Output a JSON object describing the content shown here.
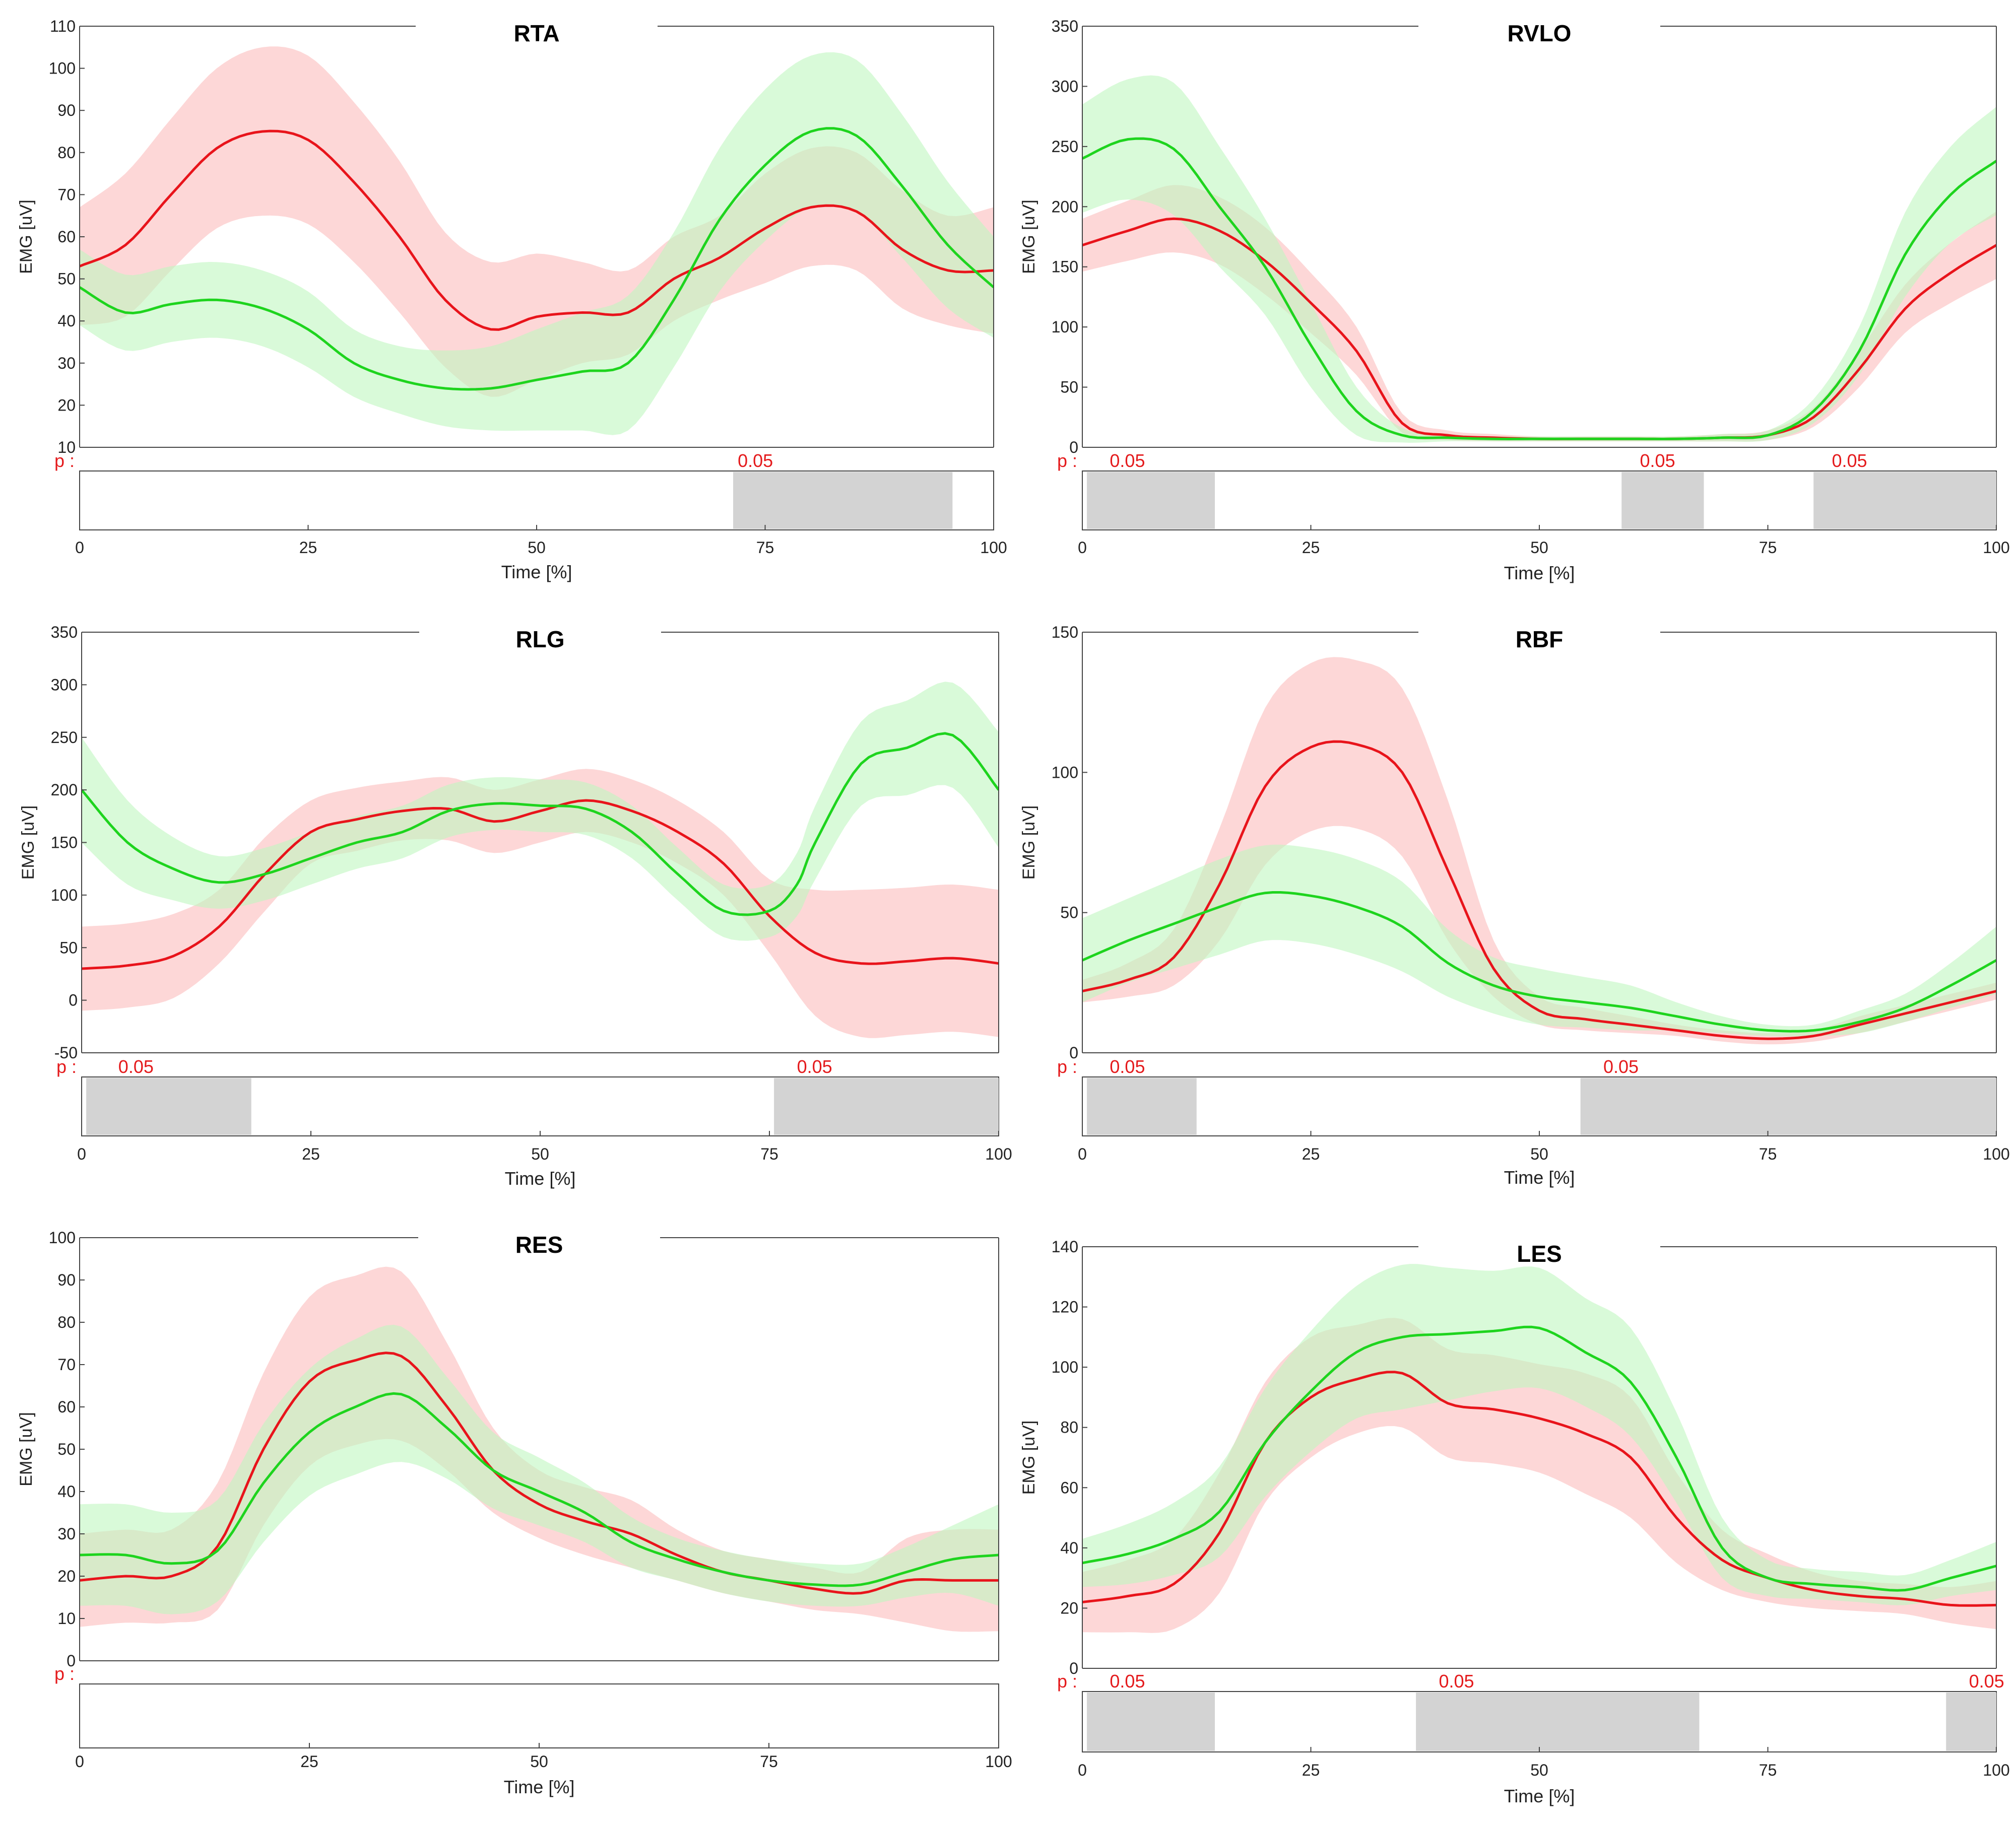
{
  "chart_data": [
    {
      "type": "line",
      "title": "RTA",
      "xlabel": "Time [%]",
      "ylabel": "EMG [uV]",
      "xlim": [
        0,
        100
      ],
      "ylim": [
        10,
        110
      ],
      "yticks": [
        10,
        20,
        30,
        40,
        50,
        60,
        70,
        80,
        90,
        100,
        110
      ],
      "xticks": [
        0,
        25,
        50,
        75,
        100
      ],
      "p_label": "p :",
      "colors": {
        "red": "#e8141b",
        "green": "#1ed41e",
        "red_band": "#fbbcbc",
        "green_band": "#bff7bf",
        "sig": "#d3d3d3"
      },
      "series": [
        {
          "name": "red",
          "color": "#e8141b",
          "x": [
            0,
            5,
            10,
            15,
            20,
            25,
            30,
            35,
            40,
            45,
            50,
            55,
            60,
            65,
            70,
            75,
            80,
            85,
            90,
            95,
            100
          ],
          "mean": [
            53,
            58,
            70,
            81,
            85,
            83,
            73,
            60,
            45,
            38,
            41,
            42,
            42,
            50,
            55,
            62,
            67,
            66,
            57,
            52,
            52
          ],
          "sd": [
            14,
            17,
            18,
            19,
            20,
            20,
            19,
            18,
            16,
            16,
            15,
            12,
            10,
            10,
            10,
            13,
            14,
            14,
            14,
            13,
            15
          ]
        },
        {
          "name": "green",
          "color": "#1ed41e",
          "x": [
            0,
            5,
            10,
            15,
            20,
            25,
            30,
            35,
            40,
            45,
            50,
            55,
            60,
            65,
            70,
            75,
            80,
            85,
            90,
            95,
            100
          ],
          "mean": [
            48,
            42,
            44,
            45,
            43,
            38,
            30,
            26,
            24,
            24,
            26,
            28,
            30,
            45,
            64,
            77,
            85,
            84,
            72,
            58,
            48
          ],
          "sd": [
            9,
            9,
            9,
            9,
            9,
            9,
            8,
            8,
            9,
            10,
            12,
            14,
            16,
            16,
            17,
            18,
            18,
            18,
            17,
            15,
            12
          ]
        }
      ],
      "significance": {
        "threshold_label": "0.05",
        "threshold_at": 72,
        "clusters": [
          {
            "start": 71.5,
            "end": 95.5
          }
        ]
      }
    },
    {
      "type": "line",
      "title": "RVLO",
      "xlabel": "Time [%]",
      "ylabel": "EMG [uV]",
      "xlim": [
        0,
        100
      ],
      "ylim": [
        0,
        350
      ],
      "yticks": [
        0,
        50,
        100,
        150,
        200,
        250,
        300,
        350
      ],
      "xticks": [
        0,
        25,
        50,
        75,
        100
      ],
      "p_label": "p :",
      "colors": {
        "red": "#e8141b",
        "green": "#1ed41e",
        "red_band": "#fbbcbc",
        "green_band": "#bff7bf",
        "sig": "#d3d3d3"
      },
      "series": [
        {
          "name": "red",
          "color": "#e8141b",
          "x": [
            0,
            5,
            10,
            15,
            20,
            25,
            30,
            35,
            40,
            45,
            50,
            55,
            60,
            65,
            70,
            75,
            80,
            85,
            90,
            95,
            100
          ],
          "mean": [
            168,
            180,
            190,
            180,
            155,
            120,
            80,
            20,
            10,
            8,
            7,
            7,
            7,
            7,
            8,
            10,
            25,
            65,
            115,
            145,
            168
          ],
          "sd": [
            22,
            25,
            28,
            28,
            28,
            25,
            20,
            8,
            4,
            3,
            2,
            2,
            2,
            2,
            3,
            4,
            8,
            15,
            20,
            25,
            28
          ]
        },
        {
          "name": "green",
          "color": "#1ed41e",
          "x": [
            0,
            5,
            10,
            15,
            20,
            25,
            30,
            35,
            40,
            45,
            50,
            55,
            60,
            65,
            70,
            75,
            80,
            85,
            90,
            95,
            100
          ],
          "mean": [
            240,
            256,
            248,
            200,
            150,
            85,
            30,
            10,
            8,
            7,
            7,
            7,
            7,
            7,
            8,
            10,
            30,
            80,
            160,
            210,
            238
          ],
          "sd": [
            45,
            50,
            55,
            50,
            40,
            35,
            20,
            6,
            3,
            2,
            2,
            2,
            2,
            2,
            3,
            4,
            10,
            20,
            35,
            40,
            45
          ]
        }
      ],
      "significance": {
        "threshold_label": "0.05",
        "clusters": [
          {
            "start": 0.5,
            "end": 14.5
          },
          {
            "start": 59,
            "end": 68
          },
          {
            "start": 80,
            "end": 100
          }
        ],
        "threshold_positions": [
          3,
          61,
          82
        ]
      }
    },
    {
      "type": "line",
      "title": "RLG",
      "xlabel": "Time [%]",
      "ylabel": "EMG [uV]",
      "xlim": [
        0,
        100
      ],
      "ylim": [
        -50,
        350
      ],
      "yticks": [
        -50,
        0,
        50,
        100,
        150,
        200,
        250,
        300,
        350
      ],
      "xticks": [
        0,
        25,
        50,
        75,
        100
      ],
      "p_label": "p :",
      "colors": {
        "red": "#e8141b",
        "green": "#1ed41e",
        "red_band": "#fbbcbc",
        "green_band": "#bff7bf",
        "sig": "#d3d3d3"
      },
      "series": [
        {
          "name": "red",
          "color": "#e8141b",
          "x": [
            0,
            5,
            10,
            15,
            20,
            25,
            30,
            35,
            40,
            45,
            50,
            55,
            60,
            65,
            70,
            75,
            80,
            85,
            90,
            95,
            100
          ],
          "mean": [
            30,
            33,
            42,
            70,
            120,
            160,
            172,
            180,
            182,
            170,
            180,
            190,
            180,
            160,
            130,
            80,
            45,
            35,
            37,
            40,
            35
          ],
          "sd": [
            40,
            40,
            40,
            35,
            35,
            30,
            30,
            28,
            30,
            30,
            30,
            30,
            30,
            30,
            30,
            35,
            60,
            70,
            70,
            70,
            70
          ]
        },
        {
          "name": "green",
          "color": "#1ed41e",
          "x": [
            0,
            5,
            10,
            15,
            20,
            25,
            30,
            35,
            40,
            45,
            50,
            55,
            60,
            65,
            70,
            75,
            78,
            80,
            85,
            90,
            95,
            100
          ],
          "mean": [
            200,
            150,
            125,
            112,
            120,
            135,
            150,
            160,
            180,
            187,
            185,
            182,
            160,
            120,
            85,
            85,
            110,
            150,
            225,
            240,
            252,
            200
          ],
          "sd": [
            50,
            40,
            30,
            25,
            25,
            25,
            25,
            25,
            25,
            25,
            25,
            25,
            25,
            25,
            25,
            25,
            30,
            35,
            40,
            45,
            50,
            55
          ]
        }
      ],
      "significance": {
        "threshold_label": "0.05",
        "clusters": [
          {
            "start": 0.5,
            "end": 18.5
          },
          {
            "start": 75.5,
            "end": 100
          }
        ],
        "threshold_positions": [
          4,
          78
        ]
      }
    },
    {
      "type": "line",
      "title": "RBF",
      "xlabel": "Time [%]",
      "ylabel": "EMG [uV]",
      "xlim": [
        0,
        100
      ],
      "ylim": [
        0,
        150
      ],
      "yticks": [
        0,
        50,
        100,
        150
      ],
      "xticks": [
        0,
        25,
        50,
        75,
        100
      ],
      "p_label": "p :",
      "colors": {
        "red": "#e8141b",
        "green": "#1ed41e",
        "red_band": "#fbbcbc",
        "green_band": "#bff7bf",
        "sig": "#d3d3d3"
      },
      "series": [
        {
          "name": "red",
          "color": "#e8141b",
          "x": [
            0,
            5,
            10,
            15,
            20,
            25,
            30,
            35,
            40,
            45,
            50,
            55,
            60,
            65,
            70,
            75,
            80,
            85,
            90,
            95,
            100
          ],
          "mean": [
            22,
            26,
            34,
            60,
            95,
            109,
            110,
            100,
            65,
            30,
            15,
            12,
            10,
            8,
            6,
            5,
            6,
            10,
            14,
            18,
            22
          ],
          "sd": [
            4,
            6,
            10,
            20,
            28,
            30,
            30,
            30,
            25,
            10,
            5,
            4,
            3,
            2,
            2,
            2,
            2,
            3,
            3,
            3,
            3
          ]
        },
        {
          "name": "green",
          "color": "#1ed41e",
          "x": [
            0,
            5,
            10,
            15,
            20,
            25,
            30,
            35,
            40,
            45,
            50,
            55,
            60,
            65,
            70,
            75,
            80,
            85,
            90,
            95,
            100
          ],
          "mean": [
            33,
            40,
            46,
            52,
            57,
            56,
            52,
            45,
            32,
            24,
            20,
            18,
            16,
            13,
            10,
            8,
            8,
            11,
            16,
            24,
            33
          ],
          "sd": [
            15,
            15,
            16,
            17,
            17,
            17,
            17,
            16,
            12,
            10,
            10,
            9,
            8,
            5,
            3,
            2,
            2,
            4,
            5,
            8,
            12
          ]
        }
      ],
      "significance": {
        "threshold_label": "0.05",
        "clusters": [
          {
            "start": 0.5,
            "end": 12.5
          },
          {
            "start": 54.5,
            "end": 100
          }
        ],
        "threshold_positions": [
          3,
          57
        ]
      }
    },
    {
      "type": "line",
      "title": "RES",
      "xlabel": "Time [%]",
      "ylabel": "EMG [uV]",
      "xlim": [
        0,
        100
      ],
      "ylim": [
        0,
        100
      ],
      "yticks": [
        0,
        10,
        20,
        30,
        40,
        50,
        60,
        70,
        80,
        90,
        100
      ],
      "xticks": [
        0,
        25,
        50,
        75,
        100
      ],
      "p_label": "p :",
      "colors": {
        "red": "#e8141b",
        "green": "#1ed41e",
        "red_band": "#fbbcbc",
        "green_band": "#bff7bf",
        "sig": "#d3d3d3"
      },
      "series": [
        {
          "name": "red",
          "color": "#e8141b",
          "x": [
            0,
            5,
            10,
            15,
            20,
            25,
            30,
            35,
            40,
            45,
            50,
            55,
            60,
            65,
            70,
            75,
            80,
            85,
            90,
            95,
            100
          ],
          "mean": [
            19,
            20,
            20,
            27,
            50,
            66,
            71,
            72,
            60,
            45,
            37,
            33,
            30,
            25,
            21,
            19,
            17,
            16,
            19,
            19,
            19
          ],
          "sd": [
            11,
            11,
            11,
            15,
            18,
            20,
            20,
            20,
            15,
            10,
            8,
            8,
            8,
            6,
            5,
            5,
            5,
            5,
            10,
            12,
            12
          ]
        },
        {
          "name": "green",
          "color": "#1ed41e",
          "x": [
            0,
            5,
            10,
            15,
            20,
            25,
            30,
            35,
            40,
            45,
            50,
            55,
            60,
            65,
            70,
            75,
            80,
            85,
            90,
            95,
            100
          ],
          "mean": [
            25,
            25,
            23,
            26,
            42,
            54,
            60,
            63,
            55,
            45,
            40,
            35,
            28,
            24,
            21,
            19,
            18,
            18,
            21,
            24,
            25
          ],
          "sd": [
            12,
            12,
            12,
            12,
            14,
            15,
            16,
            16,
            12,
            9,
            8,
            7,
            6,
            5,
            5,
            5,
            5,
            5,
            6,
            8,
            12
          ]
        }
      ],
      "significance": {
        "threshold_label": "",
        "clusters": []
      }
    },
    {
      "type": "line",
      "title": "LES",
      "xlabel": "Time [%]",
      "ylabel": "EMG [uV]",
      "xlim": [
        0,
        100
      ],
      "ylim": [
        0,
        140
      ],
      "yticks": [
        0,
        20,
        40,
        60,
        80,
        100,
        120,
        140
      ],
      "xticks": [
        0,
        25,
        50,
        75,
        100
      ],
      "p_label": "p :",
      "colors": {
        "red": "#e8141b",
        "green": "#1ed41e",
        "red_band": "#fbbcbc",
        "green_band": "#bff7bf",
        "sig": "#d3d3d3"
      },
      "series": [
        {
          "name": "red",
          "color": "#e8141b",
          "x": [
            0,
            5,
            10,
            15,
            20,
            25,
            30,
            35,
            40,
            45,
            50,
            55,
            60,
            65,
            70,
            75,
            80,
            85,
            90,
            95,
            100
          ],
          "mean": [
            22,
            24,
            28,
            45,
            75,
            90,
            96,
            98,
            88,
            86,
            83,
            78,
            70,
            50,
            36,
            30,
            26,
            24,
            23,
            21,
            21
          ],
          "sd": [
            10,
            12,
            15,
            20,
            20,
            20,
            18,
            18,
            18,
            18,
            18,
            20,
            20,
            15,
            10,
            8,
            6,
            5,
            5,
            6,
            8
          ]
        },
        {
          "name": "green",
          "color": "#1ed41e",
          "x": [
            0,
            5,
            10,
            15,
            20,
            25,
            30,
            35,
            40,
            45,
            50,
            55,
            60,
            65,
            70,
            75,
            80,
            85,
            90,
            95,
            100
          ],
          "mean": [
            35,
            38,
            43,
            52,
            75,
            92,
            105,
            110,
            111,
            112,
            113,
            105,
            95,
            70,
            40,
            30,
            28,
            27,
            26,
            30,
            34
          ],
          "sd": [
            8,
            10,
            12,
            15,
            18,
            20,
            22,
            24,
            22,
            20,
            20,
            18,
            18,
            15,
            10,
            6,
            5,
            5,
            5,
            6,
            8
          ]
        }
      ],
      "significance": {
        "threshold_label": "0.05",
        "clusters": [
          {
            "start": 0.5,
            "end": 14.5
          },
          {
            "start": 36.5,
            "end": 67.5
          },
          {
            "start": 94.5,
            "end": 100
          }
        ],
        "threshold_positions": [
          3,
          39,
          97
        ]
      }
    }
  ]
}
